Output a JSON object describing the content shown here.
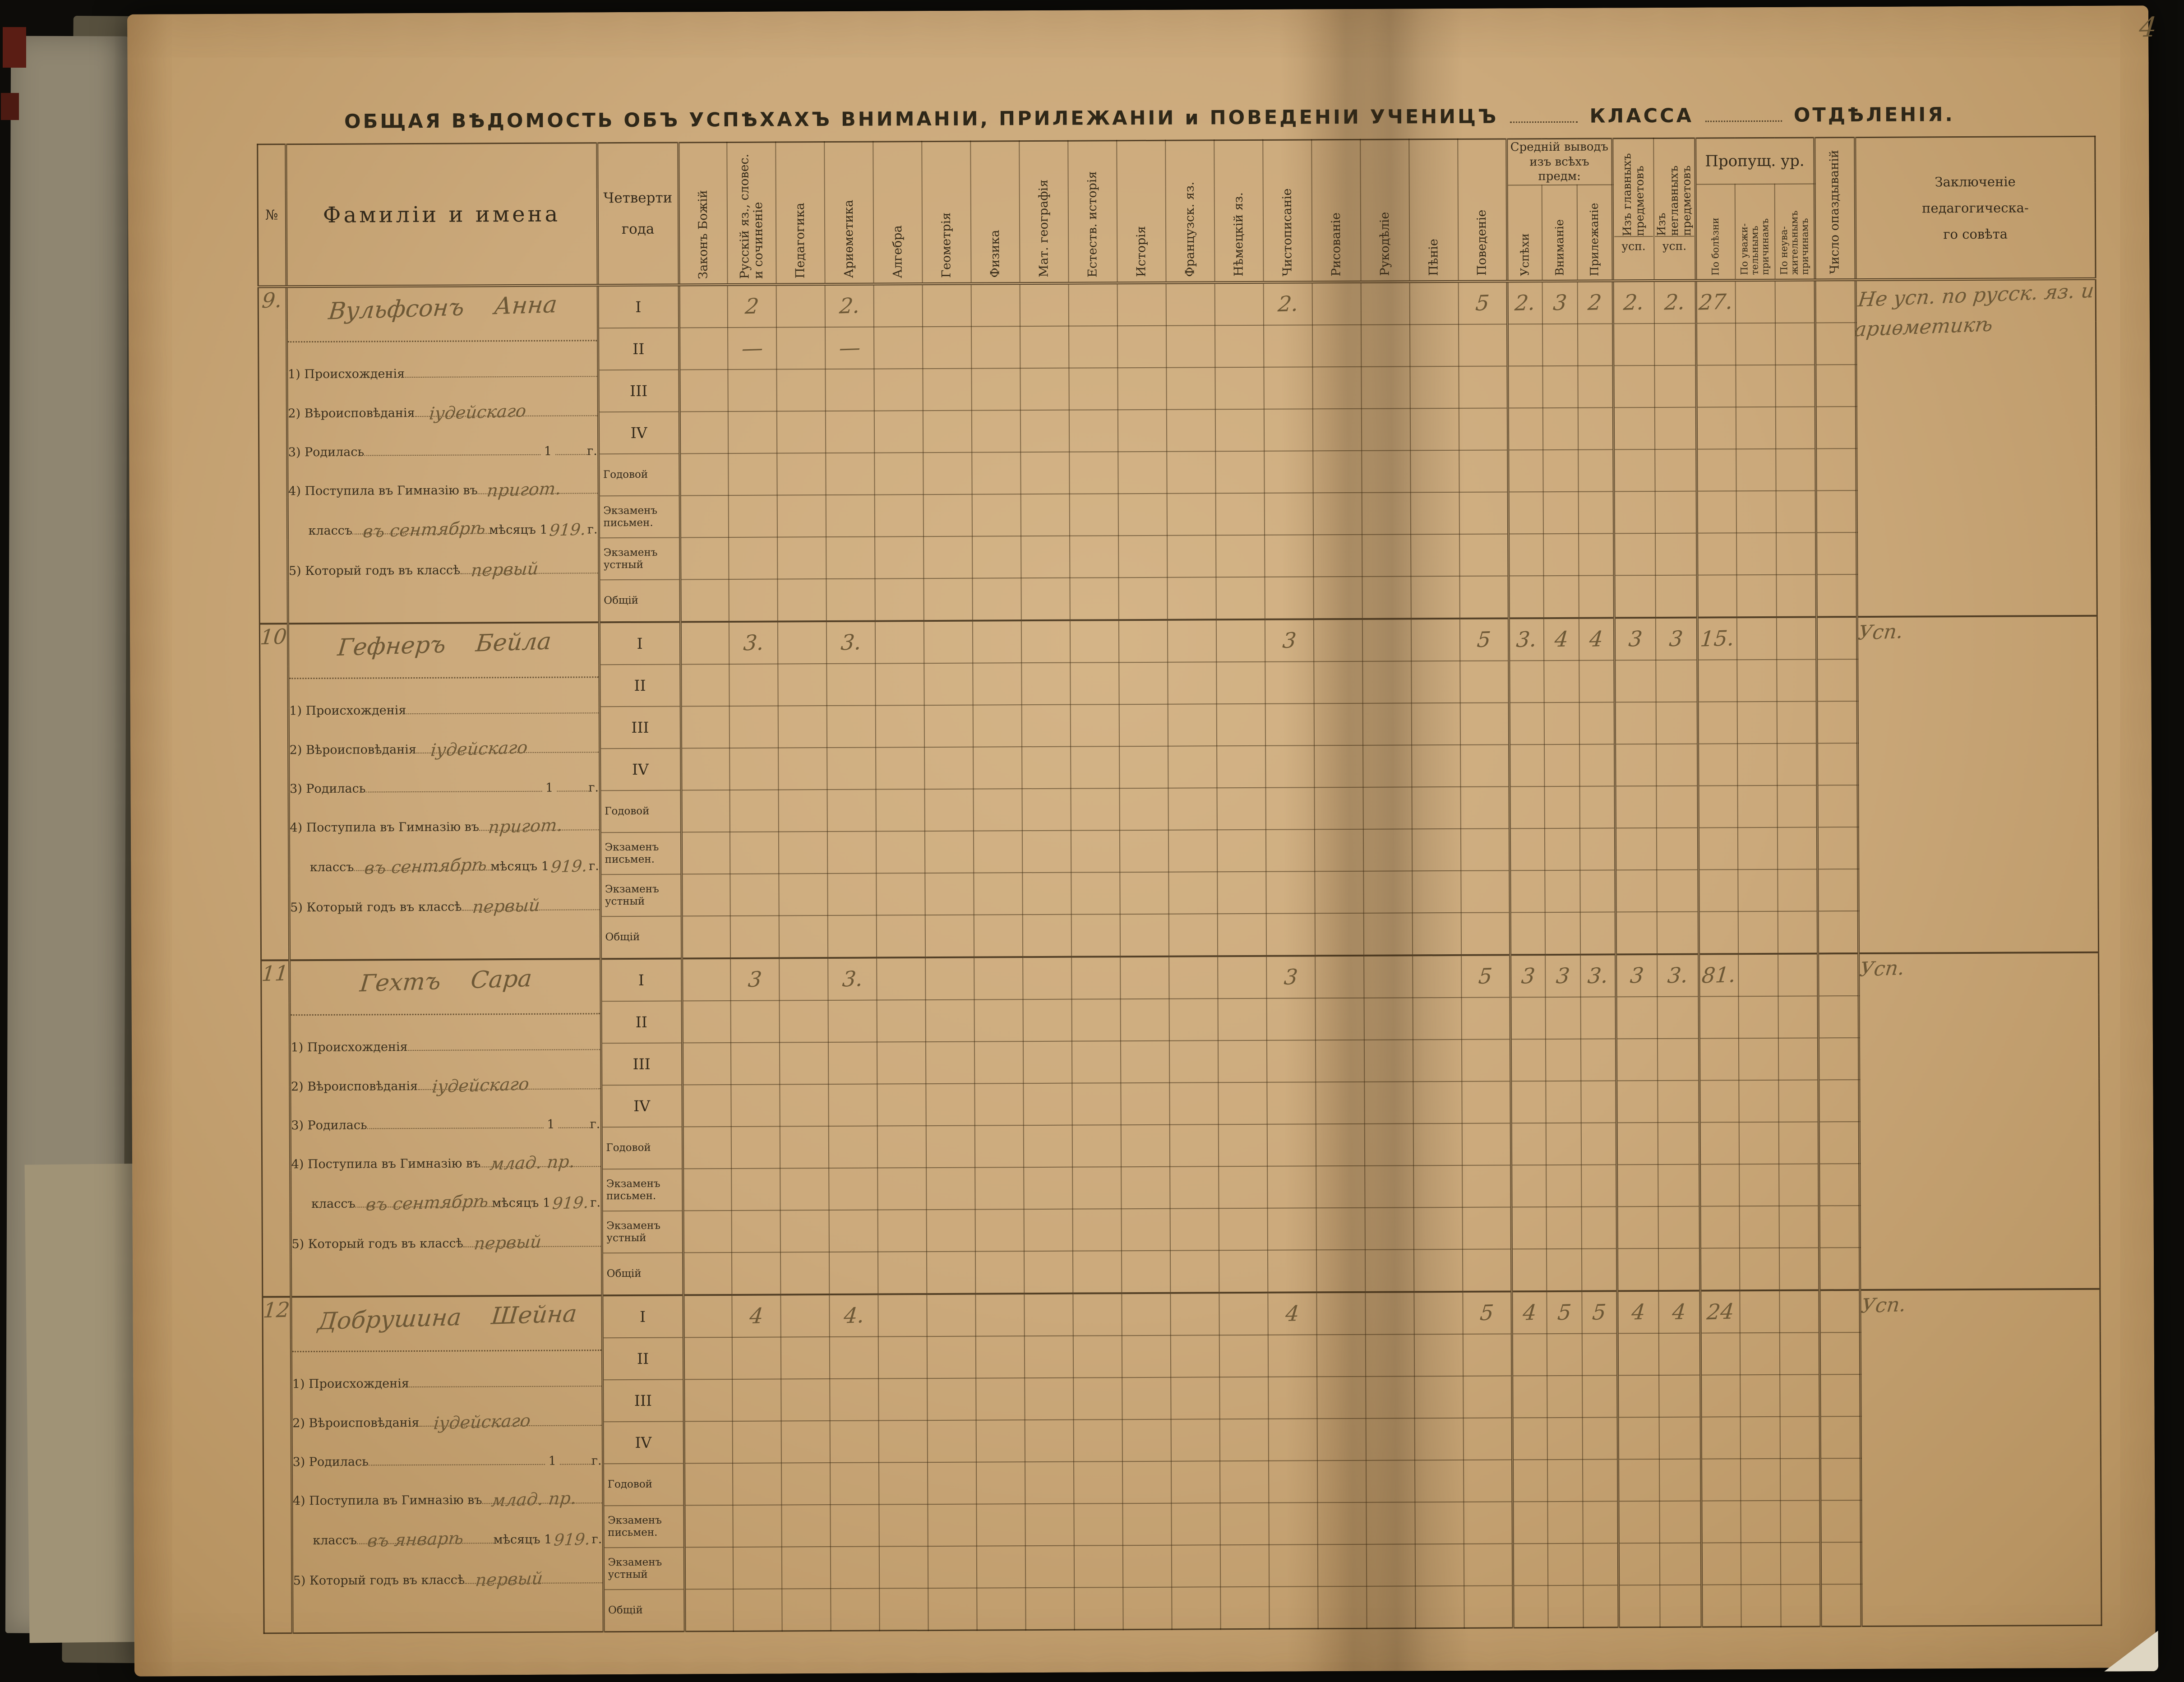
{
  "page_number": "4",
  "title": {
    "main": "ОБЩАЯ ВѢДОМОСТЬ ОБЪ УСПѢХАХЪ ВНИМАНІИ, ПРИЛЕЖАНІИ и ПОВЕДЕНІИ УЧЕНИЦЪ",
    "class_label": "КЛАССА",
    "section_label": "ОТДѢЛЕНІЯ."
  },
  "columns": {
    "number": "№",
    "names": "Фамиліи и имена",
    "quarters": "Четверти\nгода",
    "subjects": [
      "Законъ Божій",
      "Русскій яз., словес.\nи сочиненіе",
      "Педагогика",
      "Ариѳметика",
      "Алгебра",
      "Геометрія",
      "Физика",
      "Мат. географія",
      "Естеств. исторія",
      "Исторія",
      "Французск. яз.",
      "Нѣмецкій яз.",
      "Чистописаніе",
      "Рисованіе",
      "Рукодѣліе",
      "Пѣніе",
      "Поведеніе"
    ],
    "avg_group": "Средній выводъ\nизъ всѣхъ предм:",
    "avg_sub": [
      "Успѣхи",
      "Вниманіе",
      "Прилежаніе"
    ],
    "main_subjects": "Изъ главныхъ\nпредметовъ",
    "nonmain_subjects": "Изъ неглавныхъ\nпредметовъ",
    "usp": "усп.",
    "missed_group": "Пропущ. ур.",
    "missed_sub": [
      "По болѣзни",
      "По уважи-\nтельнымъ\nпричинамъ",
      "По неува-\nжительнымъ\nпричинамъ"
    ],
    "lateness": "Число опаздываній",
    "conclusion": "Заключеніе\nпедагогическа-\nго совѣта"
  },
  "quarter_rows": [
    "I",
    "II",
    "III",
    "IV",
    "Годовой",
    "Экзаменъ\nписьмен.",
    "Экзаменъ\nустный",
    "Общій"
  ],
  "form_labels": {
    "l1": "1) Происхожденія",
    "l2": "2) Вѣроисповѣданія",
    "l3": "3) Родилась",
    "l3_num": "1",
    "l3_end": "г.",
    "l4a": "4) Поступила въ Гимназію въ",
    "l4b": "классъ",
    "l4c": "мѣсяцъ 1",
    "l4d": "г.",
    "l5": "5) Который годъ въ классѣ"
  },
  "students": [
    {
      "no": "9.",
      "name": "Вульфсонъ Анна",
      "religion": "іудейскаго",
      "entered_class": "пригот.",
      "entered_month": "въ сентябрѣ",
      "entered_year": "919.",
      "year_in_class": "первый",
      "grades_I": {
        "russian": "2",
        "arithmetic": "2.",
        "penmanship": "2.",
        "conduct": "5",
        "progress": "2.",
        "attention": "3",
        "diligence": "2",
        "main": "2.",
        "nonmain": "2.",
        "missed_illness": "27."
      },
      "grades_II": {
        "russian": "—",
        "arithmetic": "—"
      },
      "conclusion": "Не усп. по русск. яз. и ариѳметикѣ"
    },
    {
      "no": "10",
      "name": "Гефнеръ Бейла",
      "religion": "іудейскаго",
      "entered_class": "пригот.",
      "entered_month": "въ сентябрѣ",
      "entered_year": "919.",
      "year_in_class": "первый",
      "grades_I": {
        "russian": "3.",
        "arithmetic": "3.",
        "penmanship": "3",
        "conduct": "5",
        "progress": "3.",
        "attention": "4",
        "diligence": "4",
        "main": "3",
        "nonmain": "3",
        "missed_illness": "15."
      },
      "grades_II": {},
      "conclusion": "Усп."
    },
    {
      "no": "11",
      "name": "Гехтъ Сара",
      "religion": "іудейскаго",
      "entered_class": "млад. пр.",
      "entered_month": "въ сентябрѣ",
      "entered_year": "919.",
      "year_in_class": "первый",
      "grades_I": {
        "russian": "3",
        "arithmetic": "3.",
        "penmanship": "3",
        "conduct": "5",
        "progress": "3",
        "attention": "3",
        "diligence": "3.",
        "main": "3",
        "nonmain": "3.",
        "missed_illness": "81."
      },
      "grades_II": {},
      "conclusion": "Усп."
    },
    {
      "no": "12",
      "name": "Добрушина Шейна",
      "religion": "іудейскаго",
      "entered_class": "млад. пр.",
      "entered_month": "въ январѣ",
      "entered_year": "919.",
      "year_in_class": "первый",
      "grades_I": {
        "russian": "4",
        "arithmetic": "4.",
        "penmanship": "4",
        "conduct": "5",
        "progress": "4",
        "attention": "5",
        "diligence": "5",
        "main": "4",
        "nonmain": "4",
        "missed_illness": "24"
      },
      "grades_II": {},
      "conclusion": "Усп."
    }
  ]
}
